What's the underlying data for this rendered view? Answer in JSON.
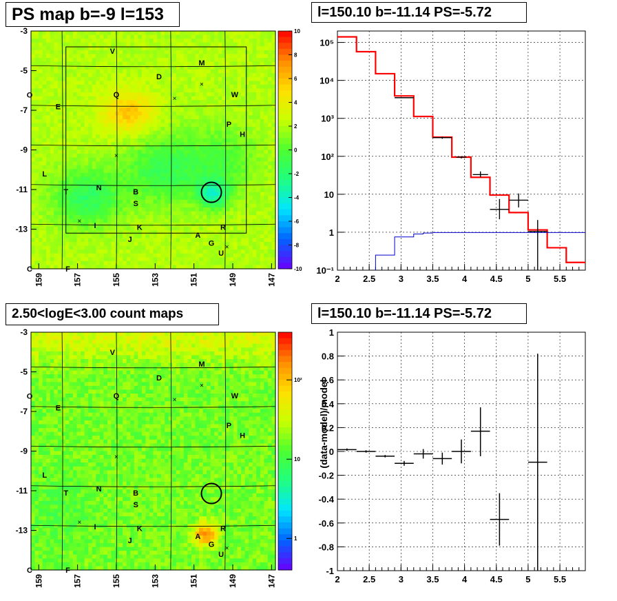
{
  "panels": {
    "ps_map": {
      "title": "PS map b=-9 l=153",
      "y_ticks": [
        "-3",
        "-5",
        "-7",
        "-9",
        "-11",
        "-13"
      ],
      "x_ticks": [
        "159",
        "157",
        "155",
        "153",
        "151",
        "149",
        "147"
      ],
      "colorbar_ticks": [
        "10",
        "8",
        "6",
        "4",
        "2",
        "0",
        "-2",
        "-4",
        "-6",
        "-8",
        "-10"
      ],
      "edge_labels": [
        "O",
        "C"
      ]
    },
    "spectrum": {
      "title": "l=150.10 b=-11.14 PS=-5.72"
    },
    "count_map": {
      "title": "2.50<logE<3.00 count maps",
      "y_ticks": [
        "-3",
        "-5",
        "-7",
        "-9",
        "-11",
        "-13"
      ],
      "x_ticks": [
        "159",
        "157",
        "155",
        "153",
        "151",
        "149",
        "147"
      ],
      "colorbar_ticks": [
        "10²",
        "10",
        "1"
      ],
      "edge_labels": [
        "O",
        "C"
      ]
    },
    "residual": {
      "title": "l=150.10 b=-11.14 PS=-5.72"
    }
  },
  "source_labels": [
    {
      "label": "V",
      "l": 155.2,
      "b": -4.0
    },
    {
      "label": "M",
      "l": 150.6,
      "b": -4.6
    },
    {
      "label": "D",
      "l": 152.8,
      "b": -5.3
    },
    {
      "label": "W",
      "l": 148.9,
      "b": -6.2
    },
    {
      "label": "Q",
      "l": 155.0,
      "b": -6.2
    },
    {
      "label": "E",
      "l": 158.0,
      "b": -6.8
    },
    {
      "label": "P",
      "l": 149.2,
      "b": -7.7
    },
    {
      "label": "H",
      "l": 148.5,
      "b": -8.2
    },
    {
      "label": "L",
      "l": 158.7,
      "b": -10.2
    },
    {
      "label": "N",
      "l": 155.9,
      "b": -10.9
    },
    {
      "label": "T",
      "l": 157.6,
      "b": -11.1
    },
    {
      "label": "B",
      "l": 154.0,
      "b": -11.1
    },
    {
      "label": "S",
      "l": 154.0,
      "b": -11.7
    },
    {
      "label": "I",
      "l": 156.1,
      "b": -12.8
    },
    {
      "label": "K",
      "l": 153.8,
      "b": -12.9
    },
    {
      "label": "R",
      "l": 149.5,
      "b": -12.9
    },
    {
      "label": "A",
      "l": 150.8,
      "b": -13.3
    },
    {
      "label": "J",
      "l": 154.3,
      "b": -13.5
    },
    {
      "label": "G",
      "l": 150.1,
      "b": -13.7
    },
    {
      "label": "U",
      "l": 149.6,
      "b": -14.2
    },
    {
      "label": "F",
      "l": 157.5,
      "b": -15.0
    }
  ],
  "cross_markers": [
    {
      "l": 150.6,
      "b": -5.7
    },
    {
      "l": 152.0,
      "b": -6.4
    },
    {
      "l": 155.0,
      "b": -9.3
    },
    {
      "l": 156.9,
      "b": -12.6
    },
    {
      "l": 149.3,
      "b": -13.9
    }
  ],
  "ps_circle": {
    "l": 150.1,
    "b": -11.14
  },
  "chart_data": [
    {
      "type": "heatmap",
      "title": "PS map b=-9 l=153",
      "xlabel": "",
      "ylabel": "",
      "xlim": [
        159.4,
        146.8
      ],
      "ylim": [
        -15.0,
        -3.0
      ],
      "colorbar_range": [
        -10,
        10
      ],
      "colormap": [
        "#6a00ff",
        "#0064ff",
        "#00e5ff",
        "#20ff80",
        "#4cff30",
        "#c9ff00",
        "#ffe000",
        "#ff8a00",
        "#ff0000"
      ]
    },
    {
      "type": "line",
      "title": "l=150.10 b=-11.14 PS=-5.72",
      "y_scale": "log",
      "xlim": [
        2.0,
        5.9
      ],
      "ylim": [
        0.1,
        200000
      ],
      "x_ticks": [
        2,
        2.5,
        3,
        3.5,
        4,
        4.5,
        5,
        5.5
      ],
      "y_ticks": [
        0.1,
        1,
        10,
        100,
        1000,
        10000,
        100000
      ],
      "y_tick_labels": [
        "10⁻¹",
        "1",
        "10",
        "10²",
        "10³",
        "10⁴",
        "10⁵"
      ],
      "grid": true,
      "series": [
        {
          "color": "#ff0000",
          "type": "step",
          "edges": [
            2.0,
            2.3,
            2.6,
            2.9,
            3.2,
            3.5,
            3.8,
            4.1,
            4.4,
            4.7,
            5.0,
            5.3,
            5.6,
            5.9
          ],
          "values": [
            140000,
            57000,
            15000,
            3900,
            1120,
            320,
            95,
            28,
            9.5,
            3.3,
            1.15,
            0.39,
            0.16
          ]
        },
        {
          "color": "#000000",
          "type": "errorbar",
          "points": [
            {
              "x": 3.05,
              "y": 3500,
              "xerr": 0.15
            },
            {
              "x": 3.65,
              "y": 310,
              "xerr": 0.15,
              "ylo": 290,
              "yhi": 330
            },
            {
              "x": 3.95,
              "y": 95,
              "xerr": 0.08,
              "ylo": 88,
              "yhi": 100
            },
            {
              "x": 4.25,
              "y": 33,
              "xerr": 0.12,
              "ylo": 28,
              "yhi": 40
            },
            {
              "x": 4.55,
              "y": 4.0,
              "xerr": 0.15,
              "ylo": 2.2,
              "yhi": 7.5
            },
            {
              "x": 4.85,
              "y": 7.0,
              "xerr": 0.15,
              "ylo": 4.5,
              "yhi": 10.5
            },
            {
              "x": 5.15,
              "y": 1.05,
              "xerr": 0.15,
              "ylo": 0.1,
              "yhi": 2.1
            }
          ]
        },
        {
          "color": "#0000cc",
          "type": "step",
          "edges": [
            2.6,
            2.9,
            3.2,
            3.35,
            3.5,
            5.9
          ],
          "values": [
            0.25,
            0.75,
            0.9,
            0.95,
            0.98
          ]
        }
      ]
    },
    {
      "type": "heatmap",
      "title": "2.50<logE<3.00 count maps",
      "xlim": [
        159.4,
        146.8
      ],
      "ylim": [
        -15.0,
        -3.0
      ],
      "colorbar_scale": "log",
      "colorbar_range": [
        0.4,
        400
      ],
      "hotspot": {
        "l": 150.4,
        "b": -13.2
      }
    },
    {
      "type": "scatter",
      "title": "l=150.10 b=-11.14 PS=-5.72",
      "ylabel": "(data-model)/model",
      "xlim": [
        2.0,
        5.9
      ],
      "ylim": [
        -1,
        1
      ],
      "x_ticks": [
        2,
        2.5,
        3,
        3.5,
        4,
        4.5,
        5,
        5.5
      ],
      "y_ticks": [
        -1,
        -0.8,
        -0.6,
        -0.4,
        -0.2,
        0,
        0.2,
        0.4,
        0.6,
        0.8,
        1
      ],
      "grid": true,
      "points": [
        {
          "x": 2.15,
          "y": 0.015,
          "xerr": 0.15,
          "ylo": 0.005,
          "yhi": 0.025
        },
        {
          "x": 2.45,
          "y": 0.0,
          "xerr": 0.15,
          "ylo": -0.01,
          "yhi": 0.01
        },
        {
          "x": 2.75,
          "y": -0.04,
          "xerr": 0.15,
          "ylo": -0.05,
          "yhi": -0.03
        },
        {
          "x": 3.05,
          "y": -0.1,
          "xerr": 0.15,
          "ylo": -0.12,
          "yhi": -0.08
        },
        {
          "x": 3.35,
          "y": -0.02,
          "xerr": 0.15,
          "ylo": -0.06,
          "yhi": 0.02
        },
        {
          "x": 3.65,
          "y": -0.06,
          "xerr": 0.15,
          "ylo": -0.11,
          "yhi": -0.01
        },
        {
          "x": 3.95,
          "y": 0.0,
          "xerr": 0.15,
          "ylo": -0.1,
          "yhi": 0.1
        },
        {
          "x": 4.25,
          "y": 0.17,
          "xerr": 0.15,
          "ylo": -0.04,
          "yhi": 0.37
        },
        {
          "x": 4.55,
          "y": -0.57,
          "xerr": 0.15,
          "ylo": -0.79,
          "yhi": -0.35
        },
        {
          "x": 5.15,
          "y": -0.09,
          "xerr": 0.15,
          "ylo": -1.0,
          "yhi": 0.82
        }
      ]
    }
  ]
}
